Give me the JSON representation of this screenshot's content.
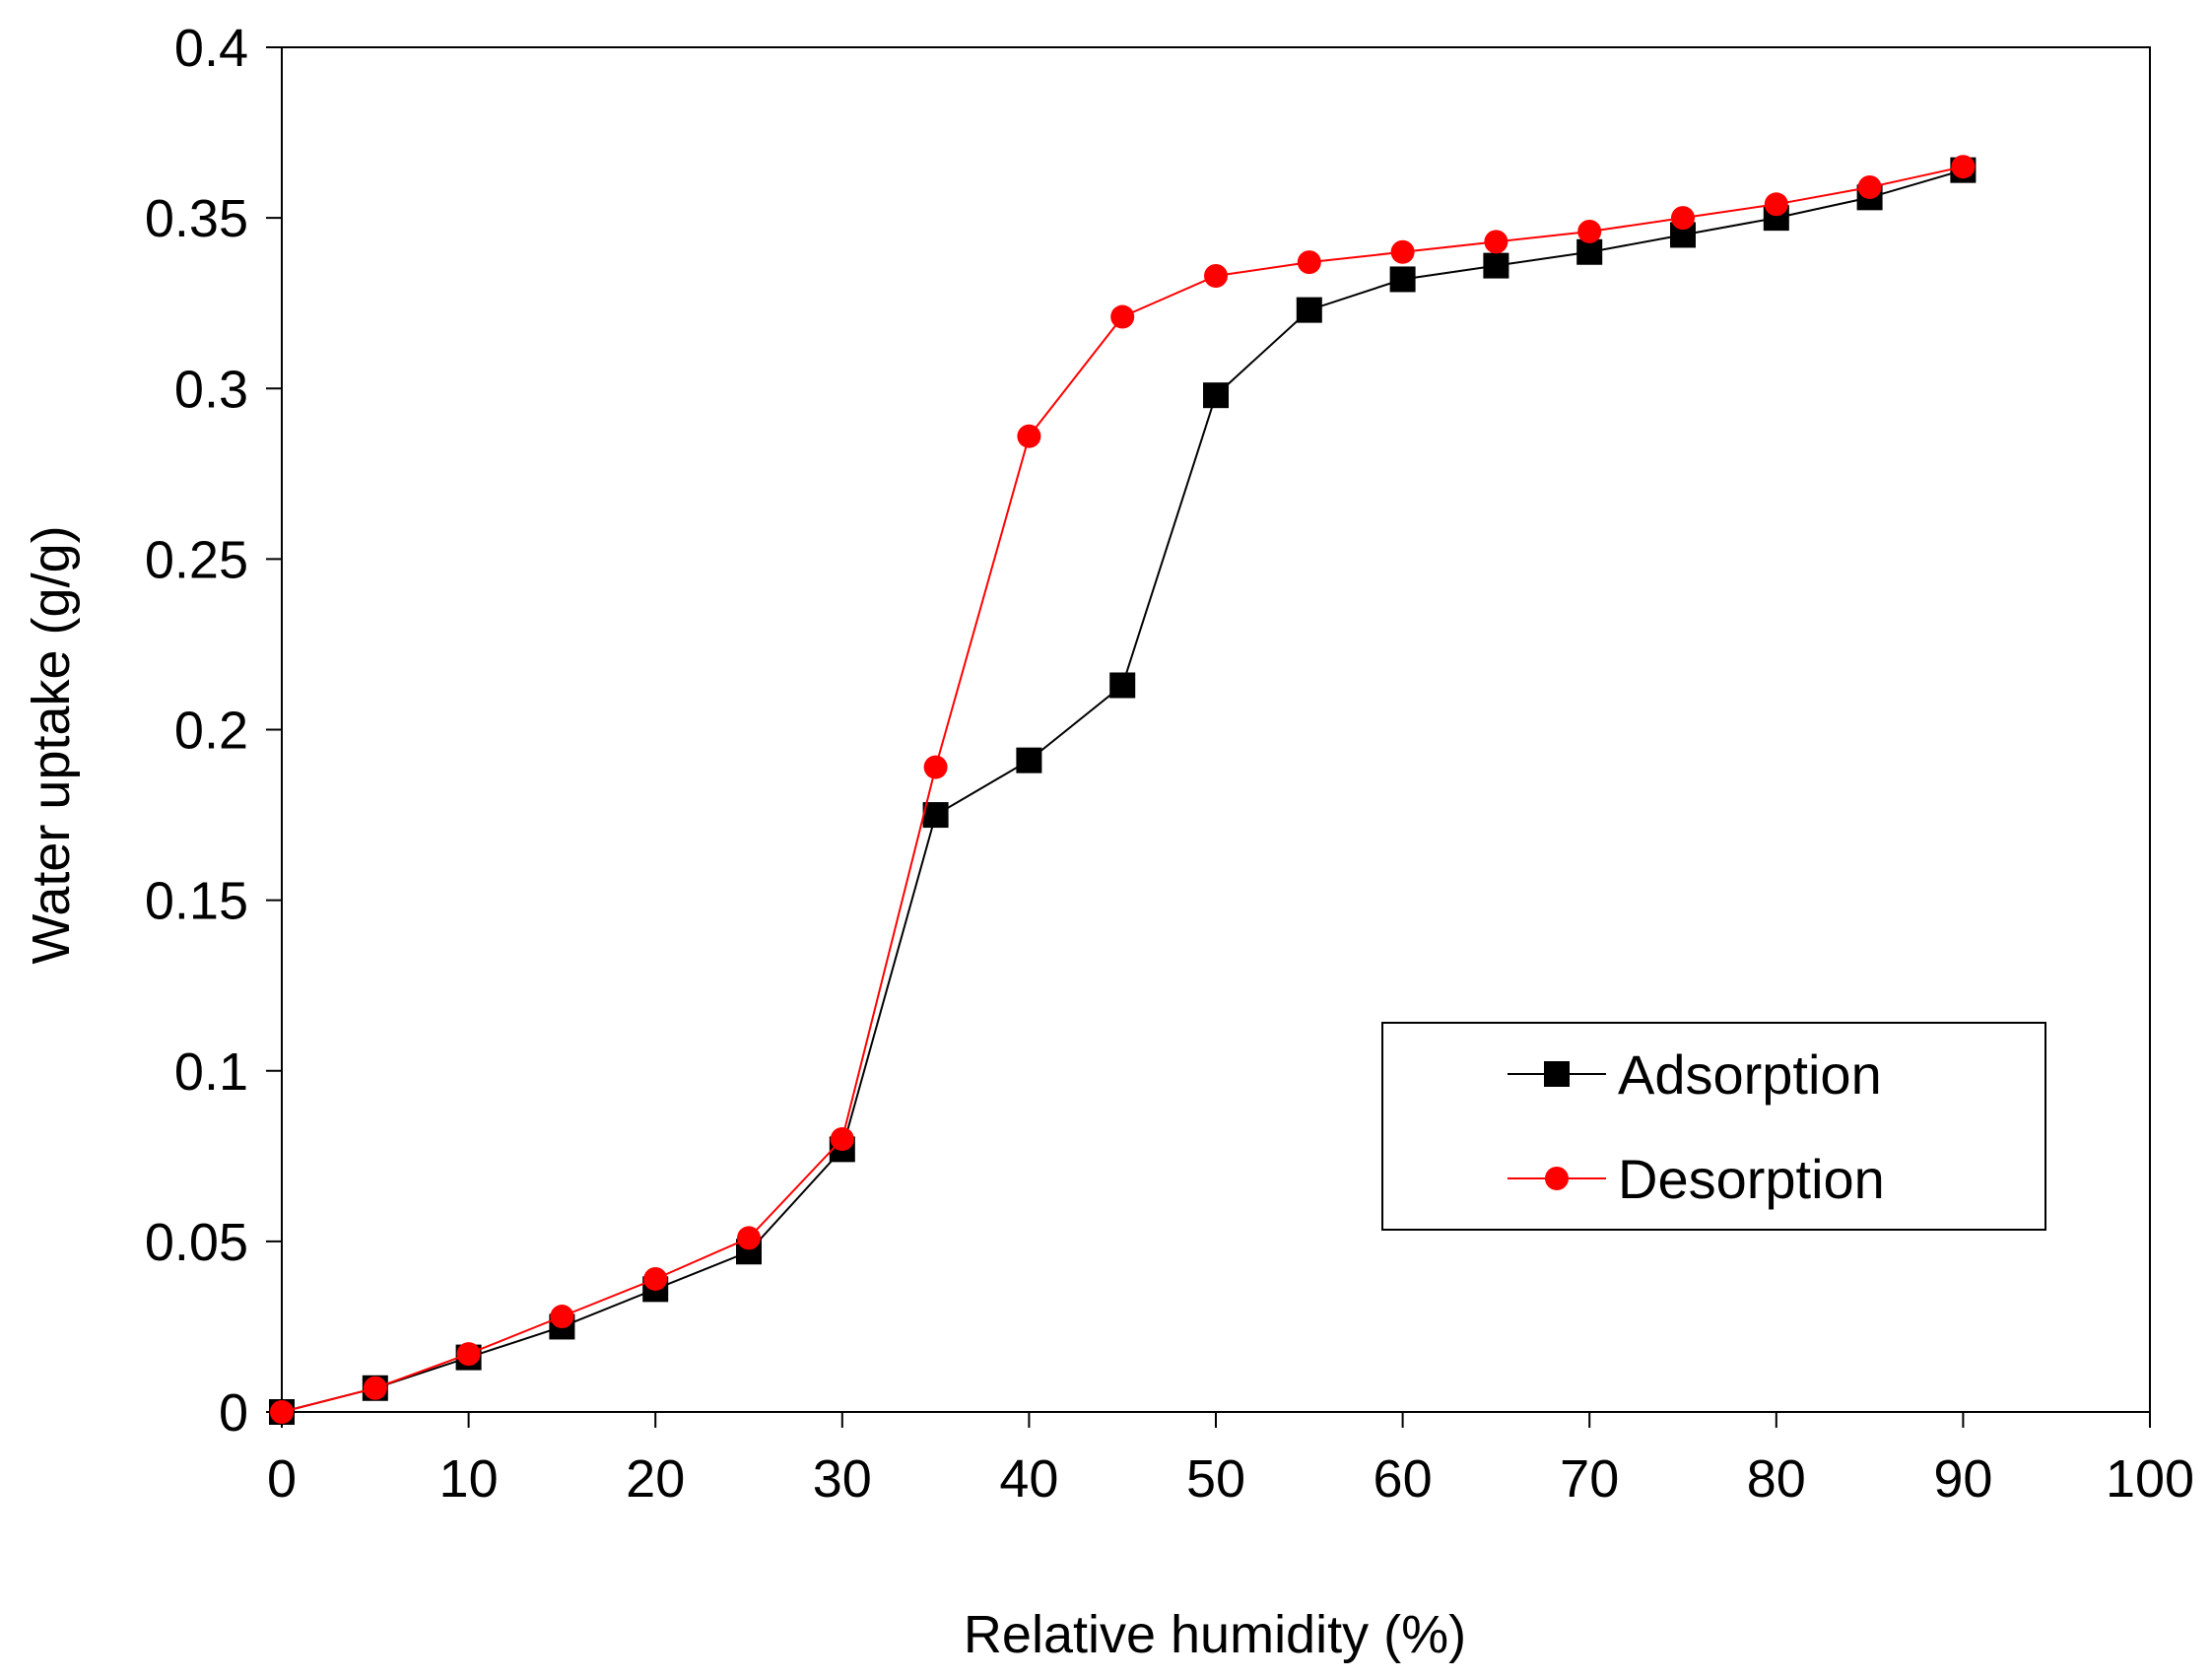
{
  "chart_data": {
    "type": "line",
    "title": "",
    "xlabel": "Relative humidity (%)",
    "ylabel": "Water uptake (g/g)",
    "xlim": [
      0,
      100
    ],
    "ylim": [
      0,
      0.4
    ],
    "xticks": [
      0,
      10,
      20,
      30,
      40,
      50,
      60,
      70,
      80,
      90,
      100
    ],
    "xtick_labels": [
      "0",
      "10",
      "20",
      "30",
      "40",
      "50",
      "60",
      "70",
      "80",
      "90",
      "100"
    ],
    "yticks": [
      0,
      0.05,
      0.1,
      0.15,
      0.2,
      0.25,
      0.3,
      0.35,
      0.4
    ],
    "ytick_labels": [
      "0",
      "0.05",
      "0.1",
      "0.15",
      "0.2",
      "0.25",
      "0.3",
      "0.35",
      "0.4"
    ],
    "grid": false,
    "legend_position": "center-right",
    "series": [
      {
        "name": "Adsorption",
        "color": "#000000",
        "marker": "square",
        "x": [
          0,
          5,
          10,
          15,
          20,
          25,
          30,
          35,
          40,
          45,
          50,
          55,
          60,
          65,
          70,
          75,
          80,
          85,
          90
        ],
        "y": [
          0.0,
          0.007,
          0.016,
          0.025,
          0.036,
          0.047,
          0.077,
          0.175,
          0.191,
          0.213,
          0.298,
          0.323,
          0.332,
          0.336,
          0.34,
          0.345,
          0.35,
          0.356,
          0.364
        ]
      },
      {
        "name": "Desorption",
        "color": "#ff0000",
        "marker": "circle",
        "x": [
          0,
          5,
          10,
          15,
          20,
          25,
          30,
          35,
          40,
          45,
          50,
          55,
          60,
          65,
          70,
          75,
          80,
          85,
          90
        ],
        "y": [
          0.0,
          0.007,
          0.017,
          0.028,
          0.039,
          0.051,
          0.08,
          0.189,
          0.286,
          0.321,
          0.333,
          0.337,
          0.34,
          0.343,
          0.346,
          0.35,
          0.354,
          0.359,
          0.365
        ]
      }
    ]
  }
}
